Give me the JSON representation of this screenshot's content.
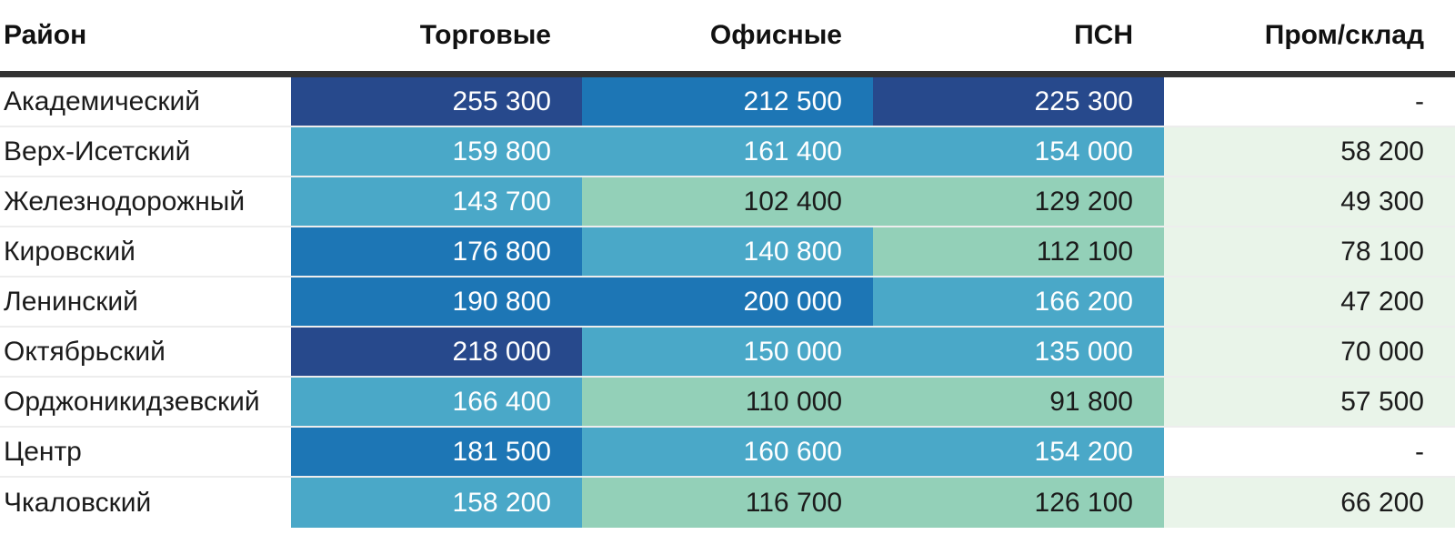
{
  "table": {
    "columns": [
      {
        "label": "Район"
      },
      {
        "label": "Торговые"
      },
      {
        "label": "Офисные"
      },
      {
        "label": "ПСН"
      },
      {
        "label": "Пром/склад"
      }
    ],
    "rows": [
      {
        "district": "Академический",
        "values": [
          "255 300",
          "212 500",
          "225 300",
          "-"
        ],
        "tones": [
          "navy",
          "blue",
          "navy",
          "none"
        ]
      },
      {
        "district": "Верх-Исетский",
        "values": [
          "159 800",
          "161 400",
          "154 000",
          "58 200"
        ],
        "tones": [
          "teal",
          "teal",
          "teal",
          "pale"
        ]
      },
      {
        "district": "Железнодорожный",
        "values": [
          "143 700",
          "102 400",
          "129 200",
          "49 300"
        ],
        "tones": [
          "teal",
          "mint",
          "mint",
          "pale"
        ]
      },
      {
        "district": "Кировский",
        "values": [
          "176 800",
          "140 800",
          "112 100",
          "78 100"
        ],
        "tones": [
          "blue",
          "teal",
          "mint",
          "pale"
        ]
      },
      {
        "district": "Ленинский",
        "values": [
          "190 800",
          "200 000",
          "166 200",
          "47 200"
        ],
        "tones": [
          "blue",
          "blue",
          "teal",
          "pale"
        ]
      },
      {
        "district": "Октябрьский",
        "values": [
          "218 000",
          "150 000",
          "135 000",
          "70 000"
        ],
        "tones": [
          "navy",
          "teal",
          "teal",
          "pale"
        ]
      },
      {
        "district": "Орджоникидзевский",
        "values": [
          "166 400",
          "110 000",
          "91 800",
          "57 500"
        ],
        "tones": [
          "teal",
          "mint",
          "mint",
          "pale"
        ]
      },
      {
        "district": "Центр",
        "values": [
          "181 500",
          "160 600",
          "154 200",
          "-"
        ],
        "tones": [
          "blue",
          "teal",
          "teal",
          "none"
        ]
      },
      {
        "district": "Чкаловский",
        "values": [
          "158 200",
          "116 700",
          "126 100",
          "66 200"
        ],
        "tones": [
          "teal",
          "mint",
          "mint",
          "pale"
        ]
      }
    ],
    "tone_colors": {
      "navy": "#27498c",
      "blue": "#1d76b5",
      "teal": "#4aa8c8",
      "mint": "#93d0b8",
      "pale": "#e9f4e9",
      "none": "#ffffff"
    },
    "text_on_dark": "#ffffff",
    "text_on_light": "#1b1b1b",
    "header_divider_color": "#333333"
  },
  "chart_data": {
    "type": "heatmap",
    "title": "",
    "row_header_label": "Район",
    "categories": [
      "Торговые",
      "Офисные",
      "ПСН",
      "Пром/склад"
    ],
    "rows": [
      "Академический",
      "Верх-Исетский",
      "Железнодорожный",
      "Кировский",
      "Ленинский",
      "Октябрьский",
      "Орджоникидзевский",
      "Центр",
      "Чкаловский"
    ],
    "values": [
      [
        255300,
        212500,
        225300,
        null
      ],
      [
        159800,
        161400,
        154000,
        58200
      ],
      [
        143700,
        102400,
        129200,
        49300
      ],
      [
        176800,
        140800,
        112100,
        78100
      ],
      [
        190800,
        200000,
        166200,
        47200
      ],
      [
        218000,
        150000,
        135000,
        70000
      ],
      [
        166400,
        110000,
        91800,
        57500
      ],
      [
        181500,
        160600,
        154200,
        null
      ],
      [
        158200,
        116700,
        126100,
        66200
      ]
    ],
    "color_scale_buckets": [
      {
        "range_min": 218000,
        "range_max": 255300,
        "color": "#27498c"
      },
      {
        "range_min": 176800,
        "range_max": 212500,
        "color": "#1d76b5"
      },
      {
        "range_min": 135000,
        "range_max": 166400,
        "color": "#4aa8c8"
      },
      {
        "range_min": 91800,
        "range_max": 129200,
        "color": "#93d0b8"
      },
      {
        "range_min": 47200,
        "range_max": 78100,
        "color": "#e9f4e9"
      }
    ],
    "legend": "off",
    "grid": "row-separators"
  }
}
